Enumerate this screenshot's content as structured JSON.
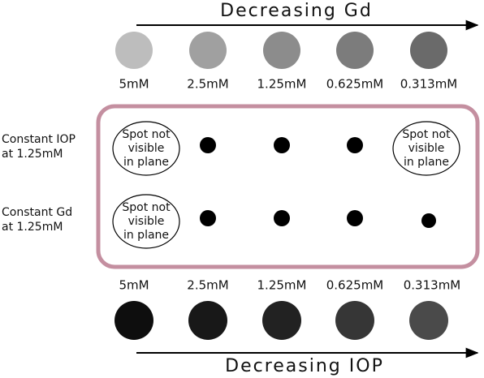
{
  "top_arrow": {
    "label": "Decreasing Gd"
  },
  "top_concentrations": [
    "5mM",
    "2.5mM",
    "1.25mM",
    "0.625mM",
    "0.313mM"
  ],
  "rows": [
    {
      "label": [
        "Constant IOP",
        "at 1.25mM"
      ],
      "spots": [
        [
          "Spot not",
          "visible",
          "in plane"
        ],
        null,
        null,
        null,
        [
          "Spot not",
          "visible",
          "in plane"
        ]
      ]
    },
    {
      "label": [
        "Constant Gd",
        "at 1.25mM"
      ],
      "spots": [
        [
          "Spot not",
          "visible",
          "in plane"
        ],
        null,
        null,
        null,
        null
      ]
    }
  ],
  "bottom_concentrations": [
    "5mM",
    "2.5mM",
    "1.25mM",
    "0.625mM",
    "0.313mM"
  ],
  "bottom_arrow": {
    "label": "Decreasing IOP"
  }
}
